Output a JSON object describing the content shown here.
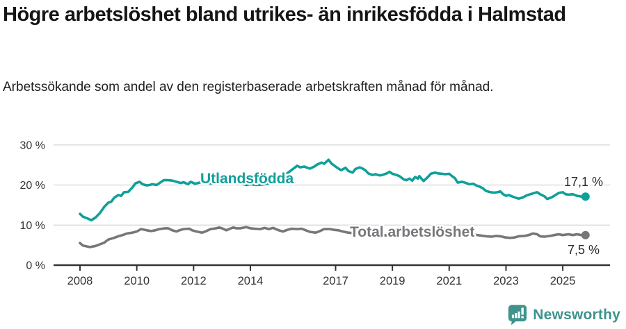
{
  "header": {
    "title": "Högre arbetslöshet bland utrikes- än inrikesfödda i Halmstad",
    "subtitle": "Arbetssökande som andel av den registerbaserade arbetskraften månad för månad."
  },
  "footer": {
    "brand": "Newsworthy",
    "brand_color": "#3E938D",
    "logo_icon": "newsworthy-speech-bubble-chart-icon"
  },
  "chart_data": {
    "type": "line",
    "title": "Högre arbetslöshet bland utrikes- än inrikesfödda i Halmstad",
    "subtitle": "Arbetssökande som andel av den registerbaserade arbetskraften månad för månad.",
    "unit": "%",
    "grid": "horizontal",
    "legend_position": "inline-on-line",
    "x_axis": {
      "range": [
        2007.05,
        2026.65
      ],
      "ticks": [
        2008,
        2010,
        2012,
        2014,
        2017,
        2019,
        2021,
        2023,
        2025
      ]
    },
    "y_axis": {
      "range": [
        0,
        32
      ],
      "ticks": [
        {
          "v": 0,
          "label": "0 %"
        },
        {
          "v": 10,
          "label": "10 %"
        },
        {
          "v": 20,
          "label": "20 %"
        },
        {
          "v": 30,
          "label": "30 %"
        }
      ]
    },
    "series": [
      {
        "id": "total",
        "name": "Total arbetslöshet",
        "color": "#77777b",
        "end_label": "7,5 %",
        "end_value": 7.5,
        "points": [
          [
            2008.0,
            5.5
          ],
          [
            2008.1,
            4.9
          ],
          [
            2008.35,
            4.5
          ],
          [
            2008.55,
            4.8
          ],
          [
            2008.7,
            5.2
          ],
          [
            2008.85,
            5.6
          ],
          [
            2009.0,
            6.4
          ],
          [
            2009.2,
            6.8
          ],
          [
            2009.35,
            7.2
          ],
          [
            2009.5,
            7.5
          ],
          [
            2009.65,
            7.9
          ],
          [
            2009.85,
            8.1
          ],
          [
            2010.0,
            8.4
          ],
          [
            2010.15,
            9.0
          ],
          [
            2010.35,
            8.7
          ],
          [
            2010.5,
            8.5
          ],
          [
            2010.65,
            8.7
          ],
          [
            2010.8,
            9.0
          ],
          [
            2011.0,
            9.2
          ],
          [
            2011.1,
            9.2
          ],
          [
            2011.25,
            8.7
          ],
          [
            2011.4,
            8.4
          ],
          [
            2011.5,
            8.7
          ],
          [
            2011.65,
            9.0
          ],
          [
            2011.85,
            9.1
          ],
          [
            2011.95,
            8.7
          ],
          [
            2012.1,
            8.4
          ],
          [
            2012.3,
            8.1
          ],
          [
            2012.45,
            8.5
          ],
          [
            2012.6,
            9.0
          ],
          [
            2012.8,
            9.2
          ],
          [
            2012.9,
            9.4
          ],
          [
            2013.0,
            9.2
          ],
          [
            2013.15,
            8.7
          ],
          [
            2013.25,
            9.0
          ],
          [
            2013.4,
            9.4
          ],
          [
            2013.5,
            9.2
          ],
          [
            2013.65,
            9.2
          ],
          [
            2013.85,
            9.5
          ],
          [
            2014.0,
            9.2
          ],
          [
            2014.15,
            9.1
          ],
          [
            2014.35,
            9.0
          ],
          [
            2014.5,
            9.3
          ],
          [
            2014.65,
            9.0
          ],
          [
            2014.8,
            9.3
          ],
          [
            2015.0,
            8.7
          ],
          [
            2015.15,
            8.4
          ],
          [
            2015.3,
            8.8
          ],
          [
            2015.45,
            9.1
          ],
          [
            2015.65,
            9.0
          ],
          [
            2015.8,
            9.1
          ],
          [
            2015.95,
            8.7
          ],
          [
            2016.1,
            8.3
          ],
          [
            2016.3,
            8.1
          ],
          [
            2016.45,
            8.5
          ],
          [
            2016.6,
            9.0
          ],
          [
            2016.8,
            9.0
          ],
          [
            2016.95,
            8.8
          ],
          [
            2017.1,
            8.7
          ],
          [
            2017.25,
            8.4
          ],
          [
            2017.45,
            8.1
          ],
          [
            2017.6,
            8.0
          ],
          [
            2017.8,
            8.2
          ],
          [
            2018.0,
            8.0
          ],
          [
            2018.3,
            7.7
          ],
          [
            2018.6,
            7.5
          ],
          [
            2018.9,
            7.4
          ],
          [
            2019.2,
            7.4
          ],
          [
            2019.5,
            7.5
          ],
          [
            2019.8,
            7.7
          ],
          [
            2020.1,
            8.0
          ],
          [
            2020.3,
            8.8
          ],
          [
            2020.5,
            9.2
          ],
          [
            2020.7,
            9.1
          ],
          [
            2020.9,
            8.9
          ],
          [
            2021.1,
            8.6
          ],
          [
            2021.4,
            8.2
          ],
          [
            2021.7,
            7.9
          ],
          [
            2021.9,
            7.6
          ],
          [
            2022.1,
            7.4
          ],
          [
            2022.3,
            7.2
          ],
          [
            2022.5,
            7.1
          ],
          [
            2022.65,
            7.3
          ],
          [
            2022.8,
            7.2
          ],
          [
            2023.0,
            6.9
          ],
          [
            2023.15,
            6.8
          ],
          [
            2023.3,
            6.9
          ],
          [
            2023.45,
            7.2
          ],
          [
            2023.65,
            7.3
          ],
          [
            2023.8,
            7.5
          ],
          [
            2023.95,
            7.9
          ],
          [
            2024.1,
            7.7
          ],
          [
            2024.2,
            7.2
          ],
          [
            2024.35,
            7.1
          ],
          [
            2024.55,
            7.3
          ],
          [
            2024.7,
            7.5
          ],
          [
            2024.85,
            7.7
          ],
          [
            2025.0,
            7.5
          ],
          [
            2025.2,
            7.7
          ],
          [
            2025.35,
            7.5
          ],
          [
            2025.5,
            7.7
          ],
          [
            2025.65,
            7.5
          ],
          [
            2025.8,
            7.5
          ]
        ]
      },
      {
        "id": "utlandsfodda",
        "name": "Utlandsfödda",
        "color": "#0fa09a",
        "end_label": "17,1 %",
        "end_value": 17.1,
        "points": [
          [
            2008.0,
            12.8
          ],
          [
            2008.1,
            12.1
          ],
          [
            2008.25,
            11.7
          ],
          [
            2008.4,
            11.2
          ],
          [
            2008.55,
            11.9
          ],
          [
            2008.7,
            13.0
          ],
          [
            2008.85,
            14.5
          ],
          [
            2009.0,
            15.6
          ],
          [
            2009.1,
            15.8
          ],
          [
            2009.2,
            16.8
          ],
          [
            2009.35,
            17.5
          ],
          [
            2009.45,
            17.3
          ],
          [
            2009.55,
            18.2
          ],
          [
            2009.7,
            18.3
          ],
          [
            2009.85,
            19.4
          ],
          [
            2009.95,
            20.4
          ],
          [
            2010.1,
            20.8
          ],
          [
            2010.2,
            20.2
          ],
          [
            2010.35,
            19.9
          ],
          [
            2010.45,
            20.0
          ],
          [
            2010.55,
            20.2
          ],
          [
            2010.7,
            20.0
          ],
          [
            2010.8,
            20.5
          ],
          [
            2010.95,
            21.2
          ],
          [
            2011.1,
            21.2
          ],
          [
            2011.25,
            21.1
          ],
          [
            2011.4,
            20.8
          ],
          [
            2011.55,
            20.5
          ],
          [
            2011.65,
            20.7
          ],
          [
            2011.8,
            20.2
          ],
          [
            2011.9,
            20.8
          ],
          [
            2012.05,
            20.3
          ],
          [
            2012.2,
            20.6
          ],
          [
            2012.35,
            20.9
          ],
          [
            2012.5,
            20.6
          ],
          [
            2012.65,
            20.3
          ],
          [
            2012.8,
            20.8
          ],
          [
            2012.95,
            21.0
          ],
          [
            2013.1,
            20.7
          ],
          [
            2013.3,
            21.0
          ],
          [
            2013.5,
            20.6
          ],
          [
            2013.7,
            20.3
          ],
          [
            2013.85,
            20.0
          ],
          [
            2014.0,
            20.2
          ],
          [
            2014.2,
            20.0
          ],
          [
            2014.4,
            20.1
          ],
          [
            2014.6,
            20.3
          ],
          [
            2014.8,
            20.9
          ],
          [
            2015.0,
            21.5
          ],
          [
            2015.2,
            22.4
          ],
          [
            2015.35,
            23.2
          ],
          [
            2015.5,
            24.0
          ],
          [
            2015.65,
            24.8
          ],
          [
            2015.75,
            24.4
          ],
          [
            2015.9,
            24.6
          ],
          [
            2016.0,
            24.3
          ],
          [
            2016.1,
            24.1
          ],
          [
            2016.25,
            24.6
          ],
          [
            2016.35,
            25.1
          ],
          [
            2016.5,
            25.6
          ],
          [
            2016.6,
            25.3
          ],
          [
            2016.75,
            26.3
          ],
          [
            2016.85,
            25.4
          ],
          [
            2017.0,
            24.6
          ],
          [
            2017.1,
            24.1
          ],
          [
            2017.2,
            23.7
          ],
          [
            2017.35,
            24.3
          ],
          [
            2017.45,
            23.5
          ],
          [
            2017.6,
            23.1
          ],
          [
            2017.7,
            24.0
          ],
          [
            2017.85,
            24.4
          ],
          [
            2017.95,
            24.1
          ],
          [
            2018.05,
            23.7
          ],
          [
            2018.15,
            22.9
          ],
          [
            2018.3,
            22.5
          ],
          [
            2018.4,
            22.7
          ],
          [
            2018.55,
            22.4
          ],
          [
            2018.65,
            22.5
          ],
          [
            2018.8,
            22.9
          ],
          [
            2018.9,
            23.3
          ],
          [
            2019.0,
            22.8
          ],
          [
            2019.15,
            22.5
          ],
          [
            2019.25,
            22.2
          ],
          [
            2019.4,
            21.4
          ],
          [
            2019.5,
            21.2
          ],
          [
            2019.6,
            21.6
          ],
          [
            2019.7,
            21.1
          ],
          [
            2019.8,
            22.0
          ],
          [
            2019.9,
            21.6
          ],
          [
            2019.95,
            22.2
          ],
          [
            2020.05,
            21.4
          ],
          [
            2020.1,
            21.0
          ],
          [
            2020.25,
            22.0
          ],
          [
            2020.35,
            22.8
          ],
          [
            2020.5,
            23.1
          ],
          [
            2020.6,
            22.9
          ],
          [
            2020.75,
            22.8
          ],
          [
            2020.85,
            22.7
          ],
          [
            2021.0,
            22.8
          ],
          [
            2021.1,
            22.2
          ],
          [
            2021.2,
            21.7
          ],
          [
            2021.3,
            20.6
          ],
          [
            2021.45,
            20.8
          ],
          [
            2021.6,
            20.5
          ],
          [
            2021.7,
            20.2
          ],
          [
            2021.85,
            20.3
          ],
          [
            2021.95,
            19.9
          ],
          [
            2022.1,
            19.5
          ],
          [
            2022.2,
            19.1
          ],
          [
            2022.3,
            18.5
          ],
          [
            2022.45,
            18.2
          ],
          [
            2022.6,
            18.1
          ],
          [
            2022.7,
            18.2
          ],
          [
            2022.8,
            18.4
          ],
          [
            2022.9,
            17.7
          ],
          [
            2023.0,
            17.3
          ],
          [
            2023.1,
            17.5
          ],
          [
            2023.2,
            17.2
          ],
          [
            2023.35,
            16.8
          ],
          [
            2023.45,
            16.6
          ],
          [
            2023.6,
            16.9
          ],
          [
            2023.7,
            17.3
          ],
          [
            2023.85,
            17.7
          ],
          [
            2023.95,
            17.9
          ],
          [
            2024.1,
            18.2
          ],
          [
            2024.2,
            17.7
          ],
          [
            2024.35,
            17.2
          ],
          [
            2024.45,
            16.5
          ],
          [
            2024.6,
            16.9
          ],
          [
            2024.7,
            17.3
          ],
          [
            2024.85,
            18.0
          ],
          [
            2025.0,
            18.2
          ],
          [
            2025.1,
            17.7
          ],
          [
            2025.2,
            17.6
          ],
          [
            2025.35,
            17.7
          ],
          [
            2025.5,
            17.3
          ],
          [
            2025.6,
            17.2
          ],
          [
            2025.7,
            17.0
          ],
          [
            2025.8,
            17.1
          ]
        ]
      }
    ]
  }
}
